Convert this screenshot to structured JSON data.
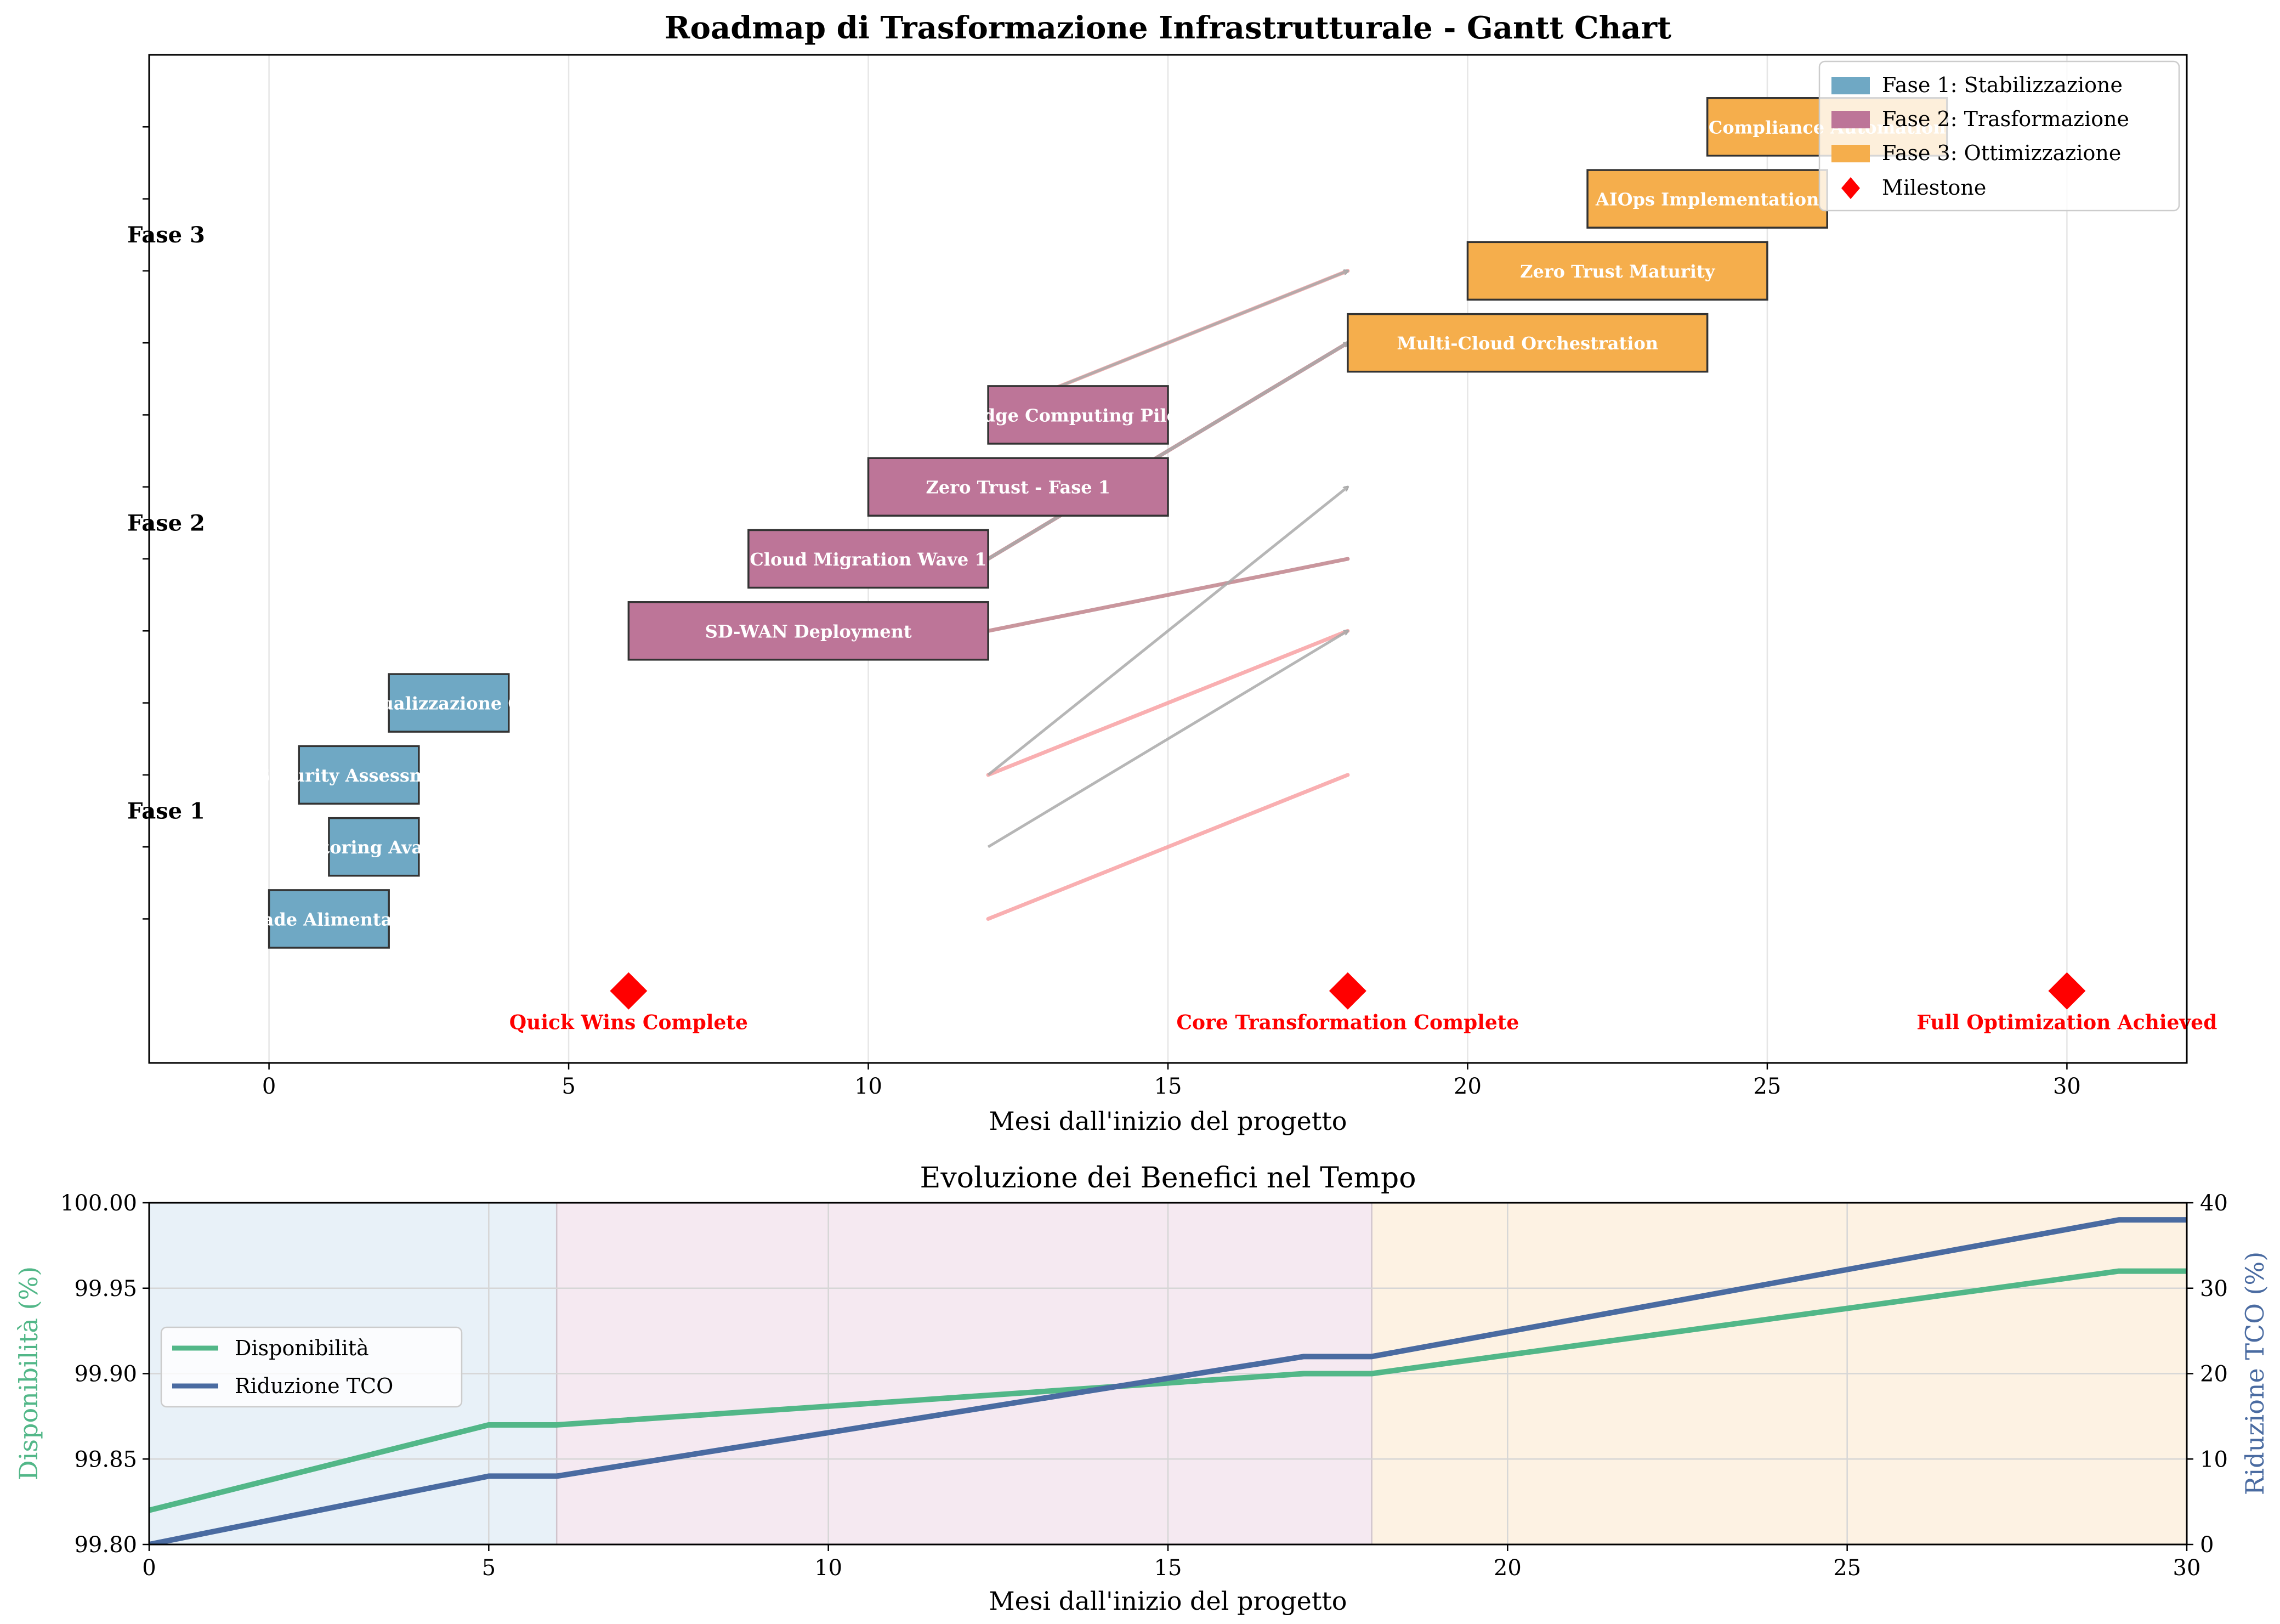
{
  "chart_data": [
    {
      "type": "gantt",
      "title": "Roadmap di Trasformazione Infrastrutturale - Gantt Chart",
      "xlabel": "Mesi dall'inizio del progetto",
      "xlim": [
        -2,
        32
      ],
      "xticks": [
        0,
        5,
        10,
        15,
        20,
        25,
        30
      ],
      "ylim": [
        -2,
        12
      ],
      "grid_x": true,
      "phase_labels": [
        {
          "label": "Fase 1",
          "y": 1.5
        },
        {
          "label": "Fase 2",
          "y": 5.5
        },
        {
          "label": "Fase 3",
          "y": 9.5
        }
      ],
      "phase_colors": {
        "fase1": "#6fa8c4",
        "fase2": "#bd7598",
        "fase3": "#f5ae4c"
      },
      "tasks": [
        {
          "name": "Upgrade Alimentazione",
          "start": 0,
          "end": 2,
          "y": 0,
          "phase": "fase1"
        },
        {
          "name": "Monitoring Avanzato",
          "start": 1,
          "end": 2.5,
          "y": 1,
          "phase": "fase1"
        },
        {
          "name": "Security Assessment",
          "start": 0.5,
          "end": 2.5,
          "y": 2,
          "phase": "fase1"
        },
        {
          "name": "Virtualizzazione Core",
          "start": 2,
          "end": 4,
          "y": 3,
          "phase": "fase1"
        },
        {
          "name": "SD-WAN Deployment",
          "start": 6,
          "end": 12,
          "y": 4,
          "phase": "fase2"
        },
        {
          "name": "Cloud Migration Wave 1",
          "start": 8,
          "end": 12,
          "y": 5,
          "phase": "fase2"
        },
        {
          "name": "Zero Trust - Fase 1",
          "start": 10,
          "end": 15,
          "y": 6,
          "phase": "fase2"
        },
        {
          "name": "Edge Computing Pilot",
          "start": 12,
          "end": 15,
          "y": 7,
          "phase": "fase2"
        },
        {
          "name": "Multi-Cloud Orchestration",
          "start": 18,
          "end": 24,
          "y": 8,
          "phase": "fase3"
        },
        {
          "name": "Zero Trust Maturity",
          "start": 20,
          "end": 25,
          "y": 9,
          "phase": "fase3"
        },
        {
          "name": "AIOps Implementation",
          "start": 22,
          "end": 26,
          "y": 10,
          "phase": "fase3"
        },
        {
          "name": "Compliance Automation",
          "start": 24,
          "end": 28,
          "y": 11,
          "phase": "fase3"
        }
      ],
      "dependency_lines": [
        {
          "x1": 12,
          "y1": 0,
          "x2": 18,
          "y2": 2,
          "color": "#f8a6a8"
        },
        {
          "x1": 12,
          "y1": 2,
          "x2": 18,
          "y2": 4,
          "color": "#f8a6a8"
        },
        {
          "x1": 12,
          "y1": 7,
          "x2": 18,
          "y2": 9,
          "color": "#f8a6a8"
        },
        {
          "x1": 12,
          "y1": 4,
          "x2": 18,
          "y2": 5,
          "color": "#c38b92"
        },
        {
          "x1": 12,
          "y1": 5,
          "x2": 18,
          "y2": 8,
          "color": "#c38b92"
        }
      ],
      "dependency_arrows": [
        {
          "x1": 12,
          "y1": 1,
          "x2": 18,
          "y2": 4
        },
        {
          "x1": 12,
          "y1": 2,
          "x2": 18,
          "y2": 6
        },
        {
          "x1": 12,
          "y1": 5,
          "x2": 18,
          "y2": 8
        },
        {
          "x1": 12,
          "y1": 7,
          "x2": 18,
          "y2": 9
        }
      ],
      "milestones": [
        {
          "x": 6,
          "y": -1,
          "label": "Quick Wins Complete"
        },
        {
          "x": 18,
          "y": -1,
          "label": "Core Transformation Complete"
        },
        {
          "x": 30,
          "y": -1,
          "label": "Full Optimization Achieved"
        }
      ],
      "legend": {
        "placement": "top-right",
        "entries": [
          {
            "label": "Fase 1: Stabilizzazione",
            "marker": "patch",
            "color": "#6fa8c4"
          },
          {
            "label": "Fase 2: Trasformazione",
            "marker": "patch",
            "color": "#bd7598"
          },
          {
            "label": "Fase 3: Ottimizzazione",
            "marker": "patch",
            "color": "#f5ae4c"
          },
          {
            "label": "Milestone",
            "marker": "diamond",
            "color": "#ff0000"
          }
        ]
      }
    },
    {
      "type": "line",
      "title": "Evoluzione dei Benefici nel Tempo",
      "xlabel": "Mesi dall'inizio del progetto",
      "ylabel_left": "Disponibilità (%)",
      "ylabel_right": "Riduzione TCO (%)",
      "xlim": [
        0,
        30
      ],
      "xticks": [
        0,
        5,
        10,
        15,
        20,
        25,
        30
      ],
      "ylim_left": [
        99.8,
        100.0
      ],
      "yticks_left": [
        "99.80",
        "99.85",
        "99.90",
        "99.95",
        "100.00"
      ],
      "ylim_right": [
        0,
        40
      ],
      "yticks_right": [
        0,
        10,
        20,
        30,
        40
      ],
      "grid": true,
      "phase_bands": [
        {
          "x0": 0,
          "x1": 6,
          "color": "#e8f1f8"
        },
        {
          "x0": 6,
          "x1": 18,
          "color": "#f5e9f1"
        },
        {
          "x0": 18,
          "x1": 30,
          "color": "#fdf2e3"
        }
      ],
      "series": [
        {
          "name": "Disponibilità",
          "axis": "left",
          "color": "#52b788",
          "x": [
            0,
            5,
            6,
            17,
            18,
            29,
            30
          ],
          "y": [
            99.82,
            99.87,
            99.87,
            99.9,
            99.9,
            99.96,
            99.96
          ]
        },
        {
          "name": "Riduzione TCO",
          "axis": "right",
          "color": "#4a6ba1",
          "x": [
            0,
            5,
            6,
            17,
            18,
            29,
            30
          ],
          "y": [
            0,
            8,
            8,
            22,
            22,
            38,
            38
          ]
        }
      ],
      "legend": {
        "placement": "center-left"
      }
    }
  ]
}
